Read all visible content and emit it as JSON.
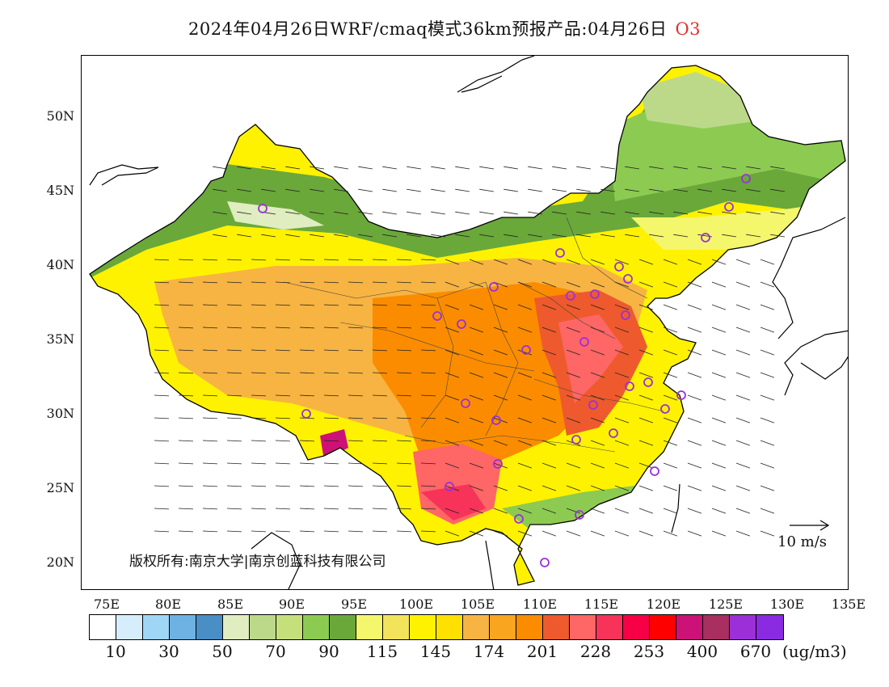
{
  "title": {
    "main": "2024年04月26日WRF/cmaq模式36km预报产品:04月26日",
    "species": "O3",
    "species_color": "#e03030"
  },
  "map": {
    "lat_labels": [
      "50N",
      "45N",
      "40N",
      "35N",
      "30N",
      "25N",
      "20N"
    ],
    "lon_labels": [
      "75E",
      "80E",
      "85E",
      "90E",
      "95E",
      "100E",
      "105E",
      "110E",
      "115E",
      "120E",
      "125E",
      "130E",
      "135E"
    ],
    "copyright": "版权所有:南京大学|南京创蓝科技有限公司",
    "wind_scale_label": "10 m/s",
    "ocean_color": "#ffffff",
    "land_outline_color": "#000000",
    "station_marker_color": "#9b30d9"
  },
  "colorbar": {
    "colors": [
      "#ffffff",
      "#d6eefc",
      "#9fd6f5",
      "#6db2e3",
      "#4a8ec6",
      "#dfedc0",
      "#bcd98a",
      "#c5e07b",
      "#8dca52",
      "#6aa83a",
      "#f4f66c",
      "#f3e35a",
      "#fff200",
      "#ffe100",
      "#f7b443",
      "#f9a51f",
      "#fb8c00",
      "#ee5a2d",
      "#ff6666",
      "#f7335a",
      "#f80045",
      "#ff0000",
      "#cc1177",
      "#a82f5f",
      "#9b30d9",
      "#8a2be2"
    ],
    "labels": [
      "10",
      "30",
      "50",
      "70",
      "90",
      "115",
      "145",
      "174",
      "201",
      "228",
      "253",
      "400",
      "670"
    ],
    "unit": "(ug/m3)"
  }
}
